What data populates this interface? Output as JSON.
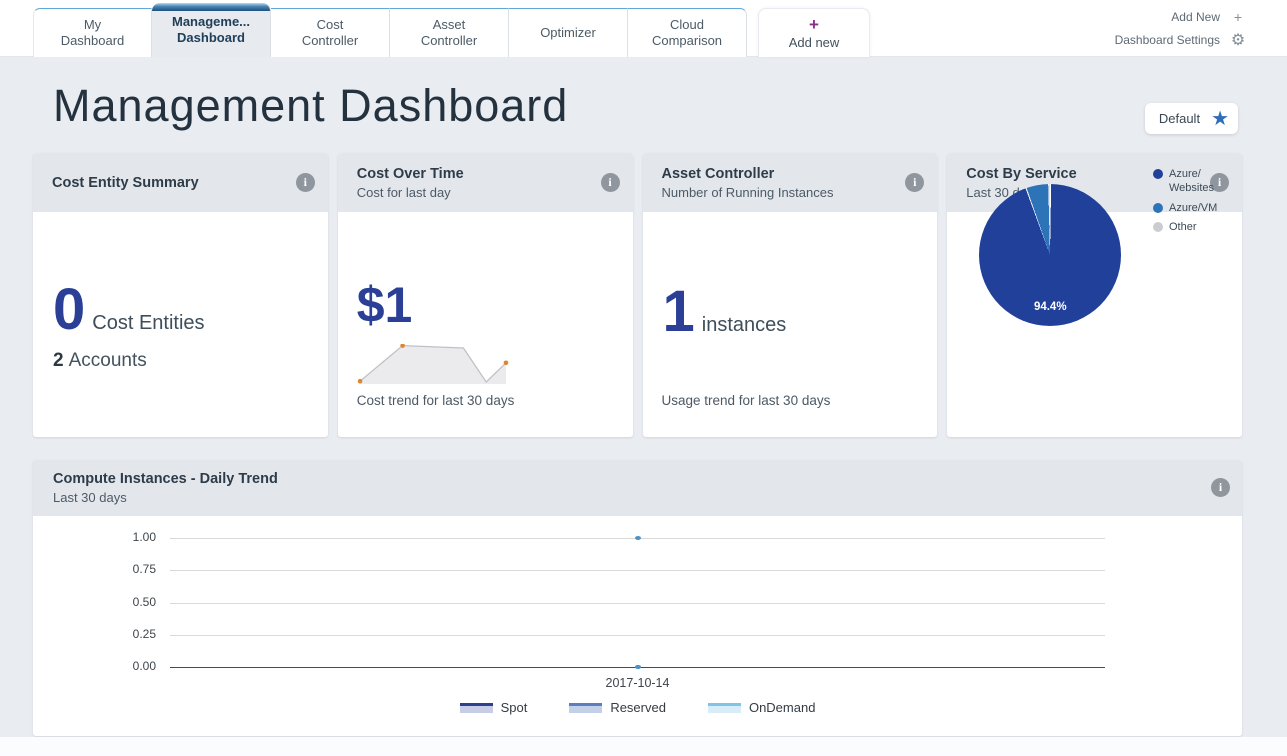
{
  "icons": {
    "info": "i",
    "gear": "⚙",
    "plus": "+",
    "star": "★"
  },
  "tab_bar": {
    "tabs": [
      {
        "label": "My\nDashboard",
        "active": false
      },
      {
        "label": "Manageme...\nDashboard",
        "active": true
      },
      {
        "label": "Cost\nController",
        "active": false
      },
      {
        "label": "Asset\nController",
        "active": false
      },
      {
        "label": "Optimizer",
        "active": false
      },
      {
        "label": "Cloud\nComparison",
        "active": false
      }
    ],
    "add_new_tab": {
      "plus": "+",
      "label": "Add new"
    },
    "actions": {
      "add_new": "Add New",
      "settings": "Dashboard Settings"
    }
  },
  "page": {
    "title": "Management Dashboard",
    "badge": "Default"
  },
  "cards": {
    "cost_entity_summary": {
      "title": "Cost Entity Summary",
      "value": "0",
      "value_label": "Cost Entities",
      "accounts_value": "2",
      "accounts_label": "Accounts"
    },
    "cost_over_time": {
      "title": "Cost Over Time",
      "subtitle": "Cost for last day",
      "value": "$1",
      "caption": "Cost trend for last 30 days"
    },
    "asset_controller": {
      "title": "Asset Controller",
      "subtitle": "Number of Running Instances",
      "value": "1",
      "value_label": "instances",
      "caption": "Usage trend for last 30 days"
    },
    "cost_by_service": {
      "title": "Cost By Service",
      "subtitle": "Last 30 days"
    }
  },
  "panel": {
    "title": "Compute Instances - Daily Trend",
    "subtitle": "Last 30 days"
  },
  "chart_data": [
    {
      "name": "cost-trend-sparkline",
      "type": "area",
      "title": "Cost trend for last 30 days",
      "points_norm_xy": [
        [
          2,
          93
        ],
        [
          30,
          4
        ],
        [
          70,
          10
        ],
        [
          85,
          95
        ],
        [
          98,
          47
        ]
      ],
      "dot_indices": [
        0,
        1,
        4
      ],
      "line_color": "#c2c0c6",
      "fill_color": "#ebebee",
      "dot_color": "#de862e"
    },
    {
      "name": "cost-by-service-pie",
      "type": "pie",
      "title": "Cost By Service",
      "labels": [
        "Azure/Websites",
        "Azure/VM",
        "Other"
      ],
      "values": [
        94.4,
        5.2,
        0.4
      ],
      "colors": [
        "#21409a",
        "#2d73b8",
        "#c9cdd2"
      ],
      "inner_label": "94.4%",
      "legend_labels": [
        "Azure/\nWebsites",
        "Azure/VM",
        "Other"
      ],
      "legend_position": "right"
    },
    {
      "name": "compute-instances-daily-trend",
      "type": "line",
      "title": "Compute Instances - Daily Trend",
      "x": [
        "2017-10-14"
      ],
      "series": [
        {
          "name": "Spot",
          "values": [
            0
          ],
          "line_color": "#2e3f92",
          "fill_color": "#c7cde5"
        },
        {
          "name": "Reserved",
          "values": [
            0
          ],
          "line_color": "#5b7fbe",
          "fill_color": "#c3d0e8"
        },
        {
          "name": "OnDemand",
          "values": [
            1
          ],
          "line_color": "#7ec4e8",
          "fill_color": "#d9edf9"
        }
      ],
      "ytick_labels": [
        "1.00",
        "0.75",
        "0.50",
        "0.25",
        "0.00"
      ],
      "ylim": [
        0,
        1
      ],
      "marker_color": "#4e93c8",
      "grid": true,
      "legend_position": "bottom"
    }
  ]
}
